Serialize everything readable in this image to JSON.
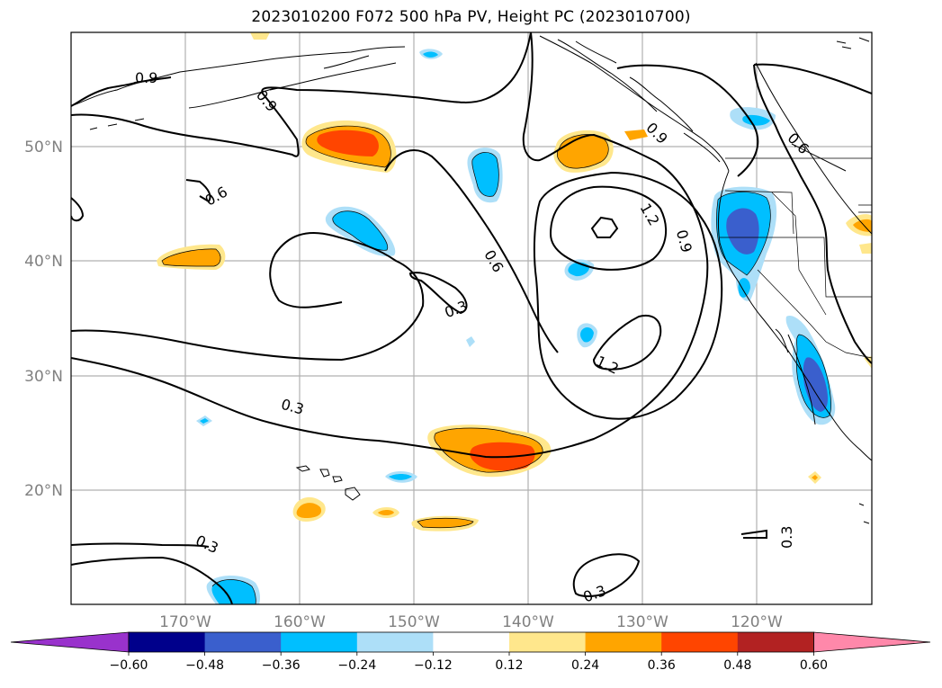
{
  "title": "2023010200 F072 500 hPa PV, Height PC (2023010700)",
  "lat_labels": [
    "50°N",
    "40°N",
    "30°N",
    "20°N"
  ],
  "lon_labels": [
    "170°W",
    "160°W",
    "150°W",
    "140°W",
    "130°W",
    "120°W"
  ],
  "colorbar": {
    "ticks": [
      "−0.60",
      "−0.48",
      "−0.36",
      "−0.24",
      "−0.12",
      "0.12",
      "0.24",
      "0.36",
      "0.48",
      "0.60"
    ],
    "colors": [
      "#9932CC",
      "#00008B",
      "#3A5FCD",
      "#00BFFF",
      "#ADDFF8",
      "#FFFFFF",
      "#FFE78C",
      "#FFA500",
      "#FF4500",
      "#B22222",
      "#FF88AA"
    ]
  },
  "contour_labels": [
    "0.9",
    "0.9",
    "0.6",
    "0.6",
    "0.3",
    "0.3",
    "0.3",
    "0.3",
    "0.3",
    "1.2",
    "1.2",
    "0.9",
    "0.9",
    "0.6"
  ],
  "shading_colors": {
    "light_orange": "#FFE78C",
    "orange": "#FFA500",
    "red_orange": "#FF4500",
    "light_blue": "#ADDFF8",
    "deep_sky_blue": "#00BFFF",
    "royal_blue": "#3A5FCD"
  }
}
